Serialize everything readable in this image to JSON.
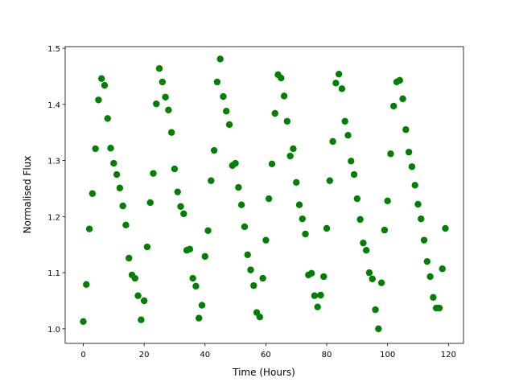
{
  "chart_data": {
    "type": "scatter",
    "x_label": "Time (Hours)",
    "y_label": "Normalised Flux",
    "x": [
      0,
      1,
      2,
      3,
      4,
      5,
      6,
      7,
      8,
      9,
      10,
      11,
      12,
      13,
      14,
      15,
      16,
      17,
      18,
      19,
      20,
      21,
      22,
      23,
      24,
      25,
      26,
      27,
      28,
      29,
      30,
      31,
      32,
      33,
      34,
      35,
      36,
      37,
      38,
      39,
      40,
      41,
      42,
      43,
      44,
      45,
      46,
      47,
      48,
      49,
      50,
      51,
      52,
      53,
      54,
      55,
      56,
      57,
      58,
      59,
      60,
      61,
      62,
      63,
      64,
      65,
      66,
      67,
      68,
      69,
      70,
      71,
      72,
      73,
      74,
      75,
      76,
      77,
      78,
      79,
      80,
      81,
      82,
      83,
      84,
      85,
      86,
      87,
      88,
      89,
      90,
      91,
      92,
      93,
      94,
      95,
      96,
      97,
      98,
      99,
      100,
      101,
      102,
      103,
      104,
      105,
      106,
      107,
      108,
      109,
      110,
      111,
      112,
      113,
      114,
      115,
      116,
      117,
      118,
      119
    ],
    "values": [
      1.013,
      1.079,
      1.178,
      1.241,
      1.321,
      1.408,
      1.446,
      1.434,
      1.375,
      1.322,
      1.295,
      1.275,
      1.251,
      1.219,
      1.185,
      1.126,
      1.096,
      1.09,
      1.059,
      1.016,
      1.05,
      1.146,
      1.225,
      1.277,
      1.401,
      1.464,
      1.44,
      1.413,
      1.39,
      1.35,
      1.285,
      1.244,
      1.218,
      1.205,
      1.14,
      1.142,
      1.09,
      1.076,
      1.019,
      1.042,
      1.129,
      1.175,
      1.264,
      1.318,
      1.44,
      1.481,
      1.414,
      1.388,
      1.364,
      1.291,
      1.295,
      1.252,
      1.221,
      1.182,
      1.132,
      1.105,
      1.077,
      1.029,
      1.021,
      1.09,
      1.158,
      1.232,
      1.294,
      1.384,
      1.453,
      1.447,
      1.415,
      1.37,
      1.308,
      1.321,
      1.261,
      1.221,
      1.196,
      1.169,
      1.096,
      1.099,
      1.059,
      1.039,
      1.06,
      1.093,
      1.179,
      1.264,
      1.334,
      1.438,
      1.454,
      1.428,
      1.37,
      1.345,
      1.299,
      1.275,
      1.232,
      1.195,
      1.153,
      1.14,
      1.1,
      1.089,
      1.034,
      1.0,
      1.082,
      1.176,
      1.228,
      1.312,
      1.397,
      1.44,
      1.443,
      1.41,
      1.355,
      1.315,
      1.289,
      1.256,
      1.222,
      1.196,
      1.158,
      1.12,
      1.093,
      1.056,
      1.037,
      1.037,
      1.107,
      1.179
    ],
    "color": "#008000",
    "xlim": [
      -5.95,
      124.95
    ],
    "xticks": [
      0,
      20,
      40,
      60,
      80,
      100,
      120
    ],
    "ylim": [
      0.974,
      1.503
    ],
    "yticks": [
      {
        "value": 1,
        "label": "1.0"
      },
      1.1,
      1.2,
      1.3,
      1.4,
      1.5
    ]
  }
}
